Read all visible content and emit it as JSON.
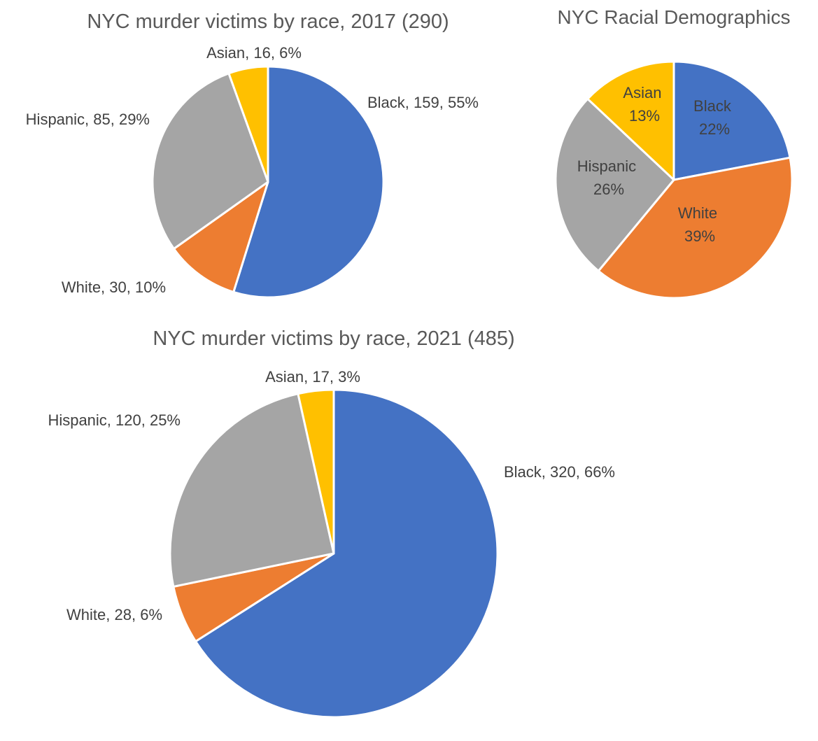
{
  "chart_data": [
    {
      "type": "pie",
      "title": "NYC murder victims by race, 2017 (290)",
      "categories": [
        "Black",
        "White",
        "Hispanic",
        "Asian"
      ],
      "values": [
        159,
        30,
        85,
        16
      ],
      "percent_labels": [
        "55%",
        "10%",
        "29%",
        "6%"
      ],
      "labels": [
        "Black, 159, 55%",
        "White, 30, 10%",
        "Hispanic, 85, 29%",
        "Asian, 16, 6%"
      ],
      "colors": [
        "#4472C4",
        "#ED7D31",
        "#A5A5A5",
        "#FFC000"
      ],
      "label_position": "outside"
    },
    {
      "type": "pie",
      "title": "NYC Racial Demographics",
      "categories": [
        "Black",
        "White",
        "Hispanic",
        "Asian"
      ],
      "values": [
        22,
        39,
        26,
        13
      ],
      "percent_labels": [
        "22%",
        "39%",
        "26%",
        "13%"
      ],
      "colors": [
        "#4472C4",
        "#ED7D31",
        "#A5A5A5",
        "#FFC000"
      ],
      "label_position": "inside"
    },
    {
      "type": "pie",
      "title": "NYC murder victims by race, 2021 (485)",
      "categories": [
        "Black",
        "White",
        "Hispanic",
        "Asian"
      ],
      "values": [
        320,
        28,
        120,
        17
      ],
      "percent_labels": [
        "66%",
        "6%",
        "25%",
        "3%"
      ],
      "labels": [
        "Black, 320, 66%",
        "White, 28, 6%",
        "Hispanic, 120, 25%",
        "Asian, 17, 3%"
      ],
      "colors": [
        "#4472C4",
        "#ED7D31",
        "#A5A5A5",
        "#FFC000"
      ],
      "label_position": "outside"
    }
  ]
}
